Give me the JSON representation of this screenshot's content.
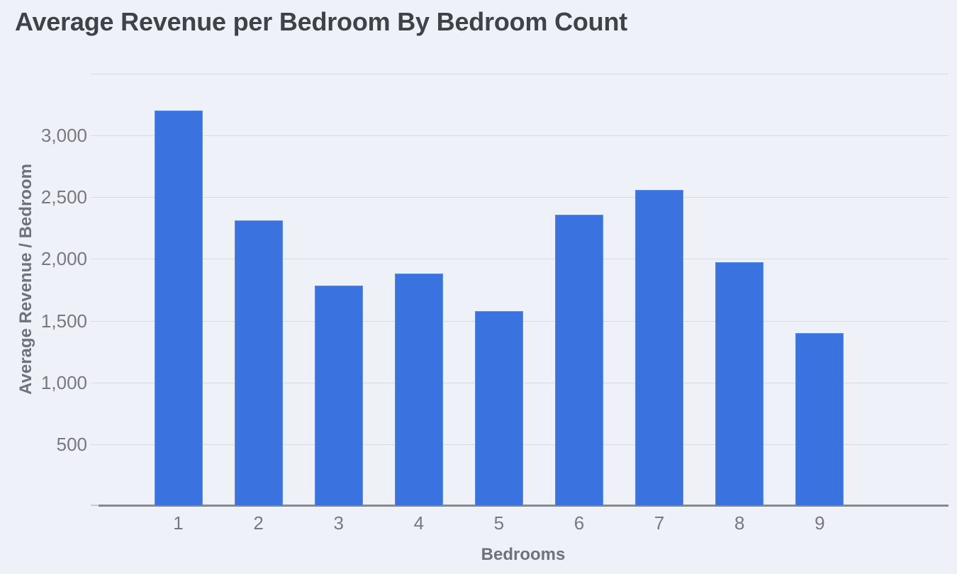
{
  "chart_data": {
    "type": "bar",
    "title": "Average Revenue per Bedroom By Bedroom Count",
    "xlabel": "Bedrooms",
    "ylabel": "Average Revenue / Bedroom",
    "categories": [
      "1",
      "2",
      "3",
      "4",
      "5",
      "6",
      "7",
      "8",
      "9"
    ],
    "values": [
      3200,
      2315,
      1785,
      1885,
      1580,
      2360,
      2560,
      1975,
      1400
    ],
    "series_name": "Average Revenue per Bedroom",
    "ylim": [
      0,
      3500
    ],
    "ytick_interval": 500,
    "yticks": [
      {
        "value": 500,
        "label": "500"
      },
      {
        "value": 1000,
        "label": "1,000"
      },
      {
        "value": 1500,
        "label": "1,500"
      },
      {
        "value": 2000,
        "label": "2,000"
      },
      {
        "value": 2500,
        "label": "2,500"
      },
      {
        "value": 3000,
        "label": "3,000"
      }
    ],
    "unlabeled_gridlines": [
      3500
    ],
    "grid": true,
    "legend": false,
    "colors": {
      "bar": "#3a73e0",
      "background": "#eef1f7",
      "gridline": "#d8dbe2",
      "axis_line": "#85898e",
      "axis_stub": "#c9ccd2",
      "title_text": "#3f4247",
      "tick_text": "#77797d",
      "axis_title_text": "#6f7276"
    }
  }
}
